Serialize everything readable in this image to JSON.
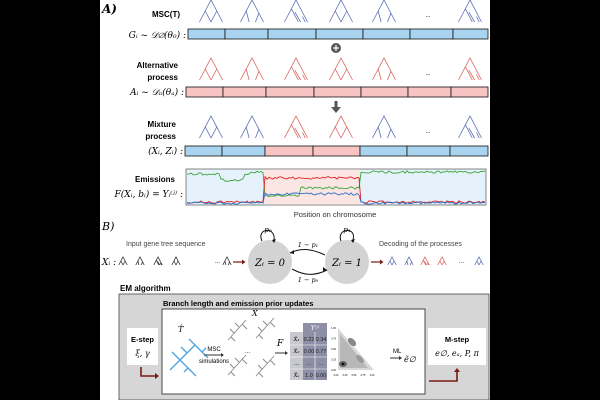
{
  "colors": {
    "msc": "#5b6fb5",
    "alt": "#d9655b",
    "bar_blue": "#a9d4f0",
    "bar_pink": "#f7c3c3",
    "arrow": "#7a1a12",
    "box_gray": "#d6d6d6",
    "node_gray": "#d3d3d3",
    "green": "#3aa53a",
    "red": "#e02020",
    "blue": "#2b6fc4"
  },
  "panel_a": {
    "label": "A)",
    "msc": {
      "label": "MSC(T)",
      "formula": "Gᵢ ~ 𝒟∅(θ₀) :",
      "ellipsis": "...",
      "tree_colors": [
        "msc",
        "msc",
        "msc",
        "msc",
        "msc",
        "msc",
        "msc"
      ],
      "bar": [
        "blue",
        "blue",
        "blue",
        "blue",
        "blue",
        "blue",
        "blue"
      ]
    },
    "plus_icon": "plus-circle-icon",
    "alt": {
      "label_1": "Alternative",
      "label_2": "process",
      "formula": "Aᵢ ~ 𝒟ₐ(θₐ) :",
      "ellipsis": "...",
      "tree_colors": [
        "alt",
        "alt",
        "alt",
        "alt",
        "alt",
        "alt",
        "alt"
      ],
      "bar": [
        "pink",
        "pink",
        "pink",
        "pink",
        "pink",
        "pink",
        "pink"
      ]
    },
    "down_arrow_icon": "arrow-down-icon",
    "mix": {
      "label_1": "Mixture",
      "label_2": "process",
      "formula": "(Xᵢ, Zᵢ) :",
      "ellipsis": "...",
      "tree_colors": [
        "msc",
        "msc",
        "alt",
        "alt",
        "msc",
        "msc",
        "msc"
      ],
      "bar": [
        "blue",
        "blue",
        "pink",
        "pink",
        "blue",
        "blue",
        "blue"
      ]
    },
    "emissions": {
      "label": "Emissions",
      "formula": "F(Xᵢ, bᵢ) = Yᵢ⁽ʲ⁾ :",
      "xlabel": "Position on chromosome"
    }
  },
  "panel_b": {
    "label": "B)",
    "input_label": "Input gene tree sequence",
    "input_formula": "Xᵢ :",
    "ellipsis": "...",
    "state0": "Zᵢ = 0",
    "state1": "Zᵢ = 1",
    "self0": "p₀",
    "self1": "p₁",
    "to0": "1 − p₁",
    "to1": "1 − p₀",
    "decoding_label": "Decoding of the processes",
    "decoding_colors": [
      "msc",
      "msc",
      "alt",
      "alt",
      "msc"
    ]
  },
  "em": {
    "title": "EM algorithm",
    "inner_title": "Branch length and emission prior updates",
    "estep": {
      "title": "E-step",
      "params": "ξ, γ"
    },
    "mstep": {
      "title": "M-step",
      "params": "e∅, eₐ, P, π"
    },
    "that": "T̂",
    "xtilde": "X̃",
    "msc_sim_1": "MSC",
    "msc_sim_2": "simulations",
    "f": "F",
    "ml": "ML",
    "e_tilde": "ẽ∅",
    "table": {
      "header": "Y⁽ʲ⁾",
      "rows": [
        {
          "label": "X̃₁",
          "v1": "0.22",
          "v2": "0.34"
        },
        {
          "label": "X̃₂",
          "v1": "0.00",
          "v2": "0.77"
        },
        {
          "label": "...",
          "v1": "...",
          "v2": "..."
        },
        {
          "label": "X̃ₛ",
          "v1": "1.0",
          "v2": "0.00"
        }
      ]
    },
    "density_ticks": [
      "0.00",
      "0.25",
      "0.50",
      "0.75",
      "1.00"
    ]
  }
}
